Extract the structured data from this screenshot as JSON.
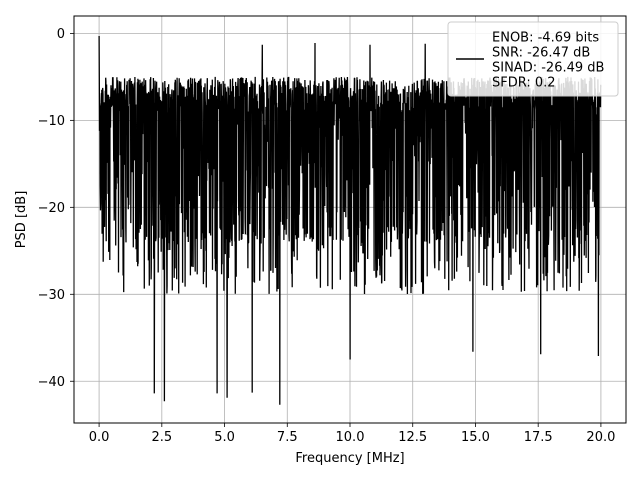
{
  "chart_data": {
    "type": "line",
    "xlabel": "Frequency [MHz]",
    "ylabel": "PSD [dB]",
    "xlim": [
      -1.0,
      21.0
    ],
    "ylim": [
      -44.8,
      2.0
    ],
    "xticks": [
      0.0,
      2.5,
      5.0,
      7.5,
      10.0,
      12.5,
      15.0,
      17.5,
      20.0
    ],
    "xtick_labels": [
      "0.0",
      "2.5",
      "5.0",
      "7.5",
      "10.0",
      "12.5",
      "15.0",
      "17.5",
      "20.0"
    ],
    "yticks": [
      0,
      -10,
      -20,
      -30,
      -40
    ],
    "ytick_labels": [
      "0",
      "−10",
      "−20",
      "−30",
      "−40"
    ],
    "grid": true,
    "legend_position": "top-right",
    "series": [
      {
        "name": "",
        "color": "#000000",
        "x_range": [
          0.0,
          20.0
        ],
        "y_band": [
          -30,
          -3
        ],
        "y_typical_range": [
          -24,
          -5
        ],
        "peaks": [
          {
            "x": 0.0,
            "y": -0.3
          },
          {
            "x": 6.5,
            "y": -1.3
          },
          {
            "x": 8.6,
            "y": -1.1
          },
          {
            "x": 10.8,
            "y": -1.3
          },
          {
            "x": 13.0,
            "y": -1.2
          }
        ],
        "deep_nulls": [
          {
            "x": 2.2,
            "y": -41.4
          },
          {
            "x": 2.6,
            "y": -42.3
          },
          {
            "x": 4.7,
            "y": -41.4
          },
          {
            "x": 5.1,
            "y": -41.9
          },
          {
            "x": 6.1,
            "y": -41.3
          },
          {
            "x": 7.2,
            "y": -42.7
          },
          {
            "x": 10.0,
            "y": -37.5
          },
          {
            "x": 14.9,
            "y": -36.6
          },
          {
            "x": 17.6,
            "y": -36.9
          },
          {
            "x": 19.9,
            "y": -37.1
          }
        ]
      }
    ],
    "legend_entries": [
      "ENOB: -4.69 bits",
      "SNR: -26.47 dB",
      "SINAD: -26.49 dB",
      "SFDR: 0.2"
    ]
  }
}
